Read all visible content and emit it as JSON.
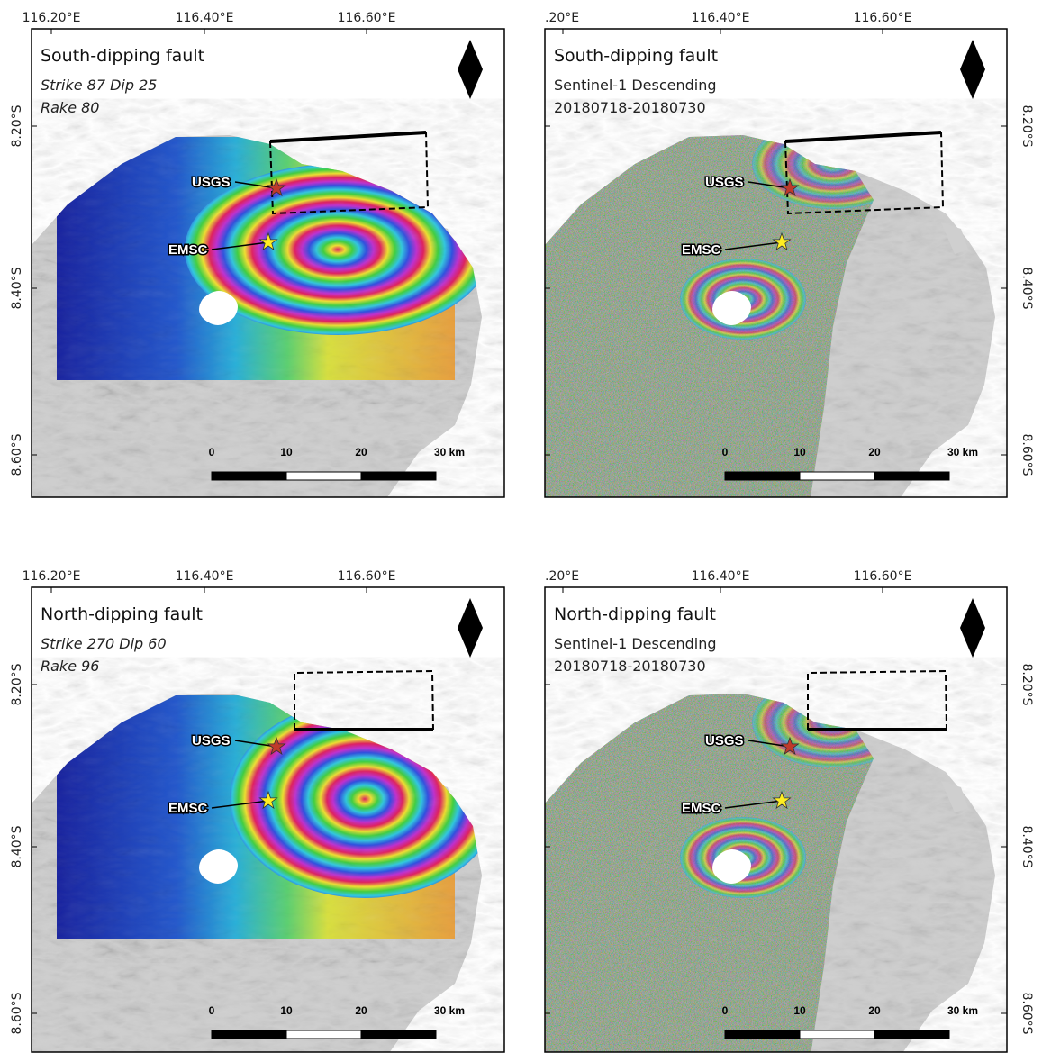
{
  "panels": [
    {
      "title": "South-dipping fault",
      "lines": [
        "Strike 87 Dip 25",
        "Rake 80"
      ],
      "lon_labels": [
        "116.20°E",
        "116.40°E",
        "116.60°E"
      ],
      "lat_labels": [
        "8.20°S",
        "8.40°S",
        "8.60°S"
      ],
      "markers": [
        "USGS",
        "EMSC"
      ],
      "scale_labels": [
        "0",
        "10",
        "20",
        "30 km"
      ]
    },
    {
      "title": "South-dipping fault",
      "lines": [
        "Sentinel-1 Descending",
        "20180718-20180730"
      ],
      "lon_labels": [
        ".20°E",
        "116.40°E",
        "116.60°E"
      ],
      "lat_labels": [
        "8.20°S",
        "8.40°S",
        "8.60°S"
      ],
      "markers": [
        "USGS",
        "EMSC"
      ],
      "scale_labels": [
        "0",
        "10",
        "20",
        "30 km"
      ]
    },
    {
      "title": "North-dipping fault",
      "lines": [
        "Strike 270 Dip 60",
        "Rake 96"
      ],
      "lon_labels": [
        "116.20°E",
        "116.40°E",
        "116.60°E"
      ],
      "lat_labels": [
        "8.20°S",
        "8.40°S",
        "8.60°S"
      ],
      "markers": [
        "USGS",
        "EMSC"
      ],
      "scale_labels": [
        "0",
        "10",
        "20",
        "30 km"
      ]
    },
    {
      "title": "North-dipping fault",
      "lines": [
        "Sentinel-1 Descending",
        "20180718-20180730"
      ],
      "lon_labels": [
        ".20°E",
        "116.40°E",
        "116.60°E"
      ],
      "lat_labels": [
        "8.20°S",
        "8.40°S",
        "8.60°S"
      ],
      "markers": [
        "USGS",
        "EMSC"
      ],
      "scale_labels": [
        "0",
        "10",
        "20",
        "30 km"
      ]
    }
  ]
}
